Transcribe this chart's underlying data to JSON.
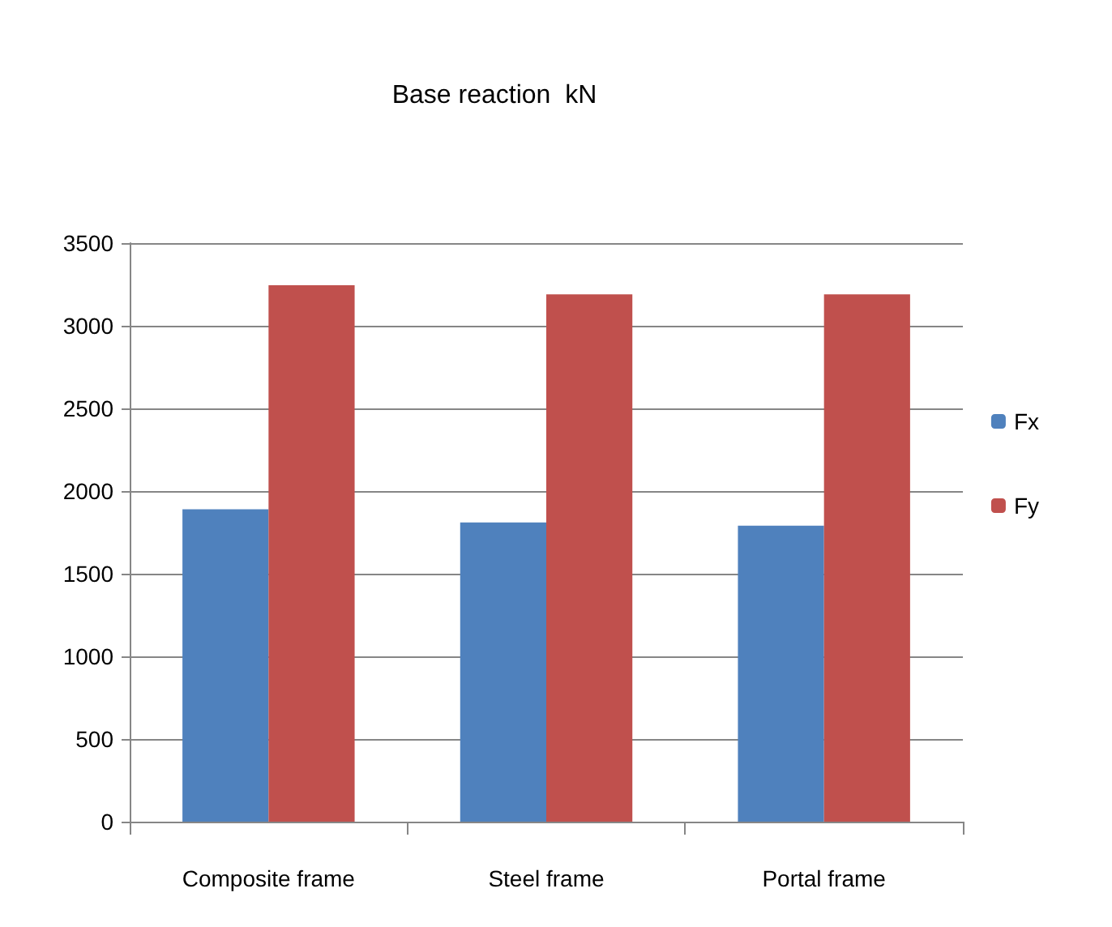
{
  "chart_data": {
    "type": "bar",
    "title": "Base reaction  kN",
    "categories": [
      "Composite frame",
      "Steel frame",
      "Portal frame"
    ],
    "series": [
      {
        "name": "Fx",
        "color": "#4f81bd",
        "values": [
          1890,
          1810,
          1790
        ]
      },
      {
        "name": "Fy",
        "color": "#c0504d",
        "values": [
          3245,
          3190,
          3190
        ]
      }
    ],
    "ylim": [
      0,
      3500
    ],
    "yticks": [
      0,
      500,
      1000,
      1500,
      2000,
      2500,
      3000,
      3500
    ],
    "grid": "y",
    "legend": "right"
  }
}
